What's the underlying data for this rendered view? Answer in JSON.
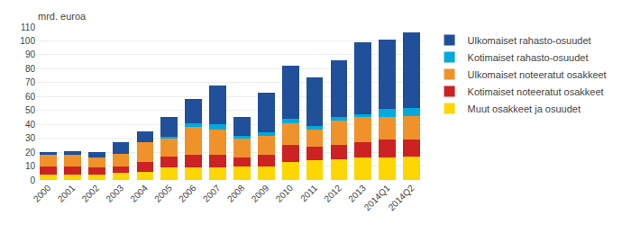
{
  "chart_data": {
    "type": "bar",
    "stacked": true,
    "ylabel": "mrd. euroa",
    "categories": [
      "2000",
      "2001",
      "2002",
      "2003",
      "2004",
      "2005",
      "2006",
      "2007",
      "2008",
      "2009",
      "2010",
      "2011",
      "2012",
      "2013",
      "2014Q1",
      "2014Q2"
    ],
    "series": [
      {
        "name": "Muut osakkeet ja osuudet",
        "color": "#FFD700",
        "values": [
          4,
          4,
          4,
          5,
          6,
          9,
          9,
          9,
          10,
          10,
          13,
          14,
          15,
          16,
          16,
          17
        ]
      },
      {
        "name": "Kotimaiset noteeratut osakkeet",
        "color": "#CC2222",
        "values": [
          6,
          6,
          5,
          5,
          7,
          8,
          9,
          9,
          6,
          8,
          12,
          10,
          10,
          11,
          13,
          12
        ]
      },
      {
        "name": "Ulkomaiset noteeratut osakkeet",
        "color": "#F0922A",
        "values": [
          8,
          8,
          7,
          9,
          14,
          13,
          20,
          18,
          14,
          14,
          16,
          12,
          18,
          18,
          16,
          17
        ]
      },
      {
        "name": "Kotimaiset rahasto-osuudet",
        "color": "#00AADD",
        "values": [
          0,
          0,
          0,
          0,
          0,
          1,
          3,
          4,
          2,
          2,
          3,
          3,
          2,
          2,
          6,
          6
        ]
      },
      {
        "name": "Ulkomaiset rahasto-osuudet",
        "color": "#1F5099",
        "values": [
          2,
          3,
          4,
          8,
          8,
          14,
          17,
          28,
          13,
          29,
          38,
          35,
          41,
          52,
          50,
          54
        ]
      }
    ],
    "ylim": [
      0,
      110
    ],
    "yticks": [
      0,
      10,
      20,
      30,
      40,
      50,
      60,
      70,
      80,
      90,
      100,
      110
    ],
    "grid": true,
    "legend": "right"
  }
}
